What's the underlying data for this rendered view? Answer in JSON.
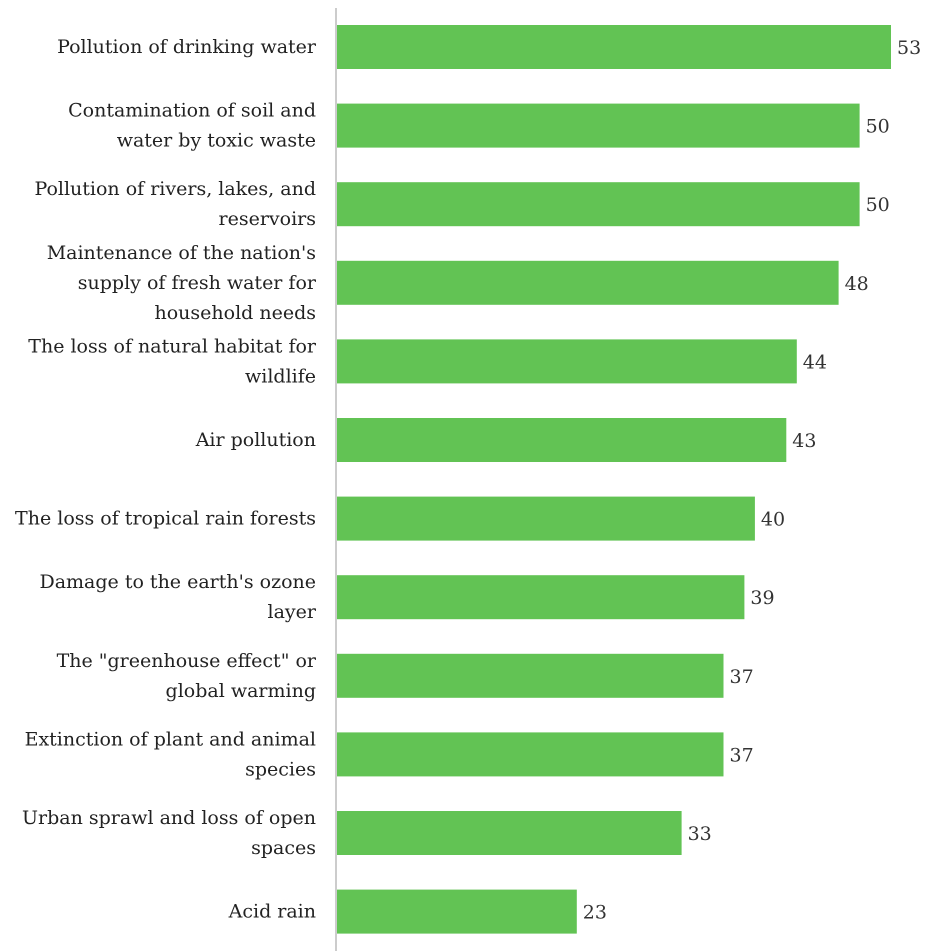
{
  "chart_data": {
    "type": "bar",
    "orientation": "horizontal",
    "categories": [
      "Pollution of drinking water",
      "Contamination of soil and water by toxic waste",
      "Pollution of rivers, lakes, and reservoirs",
      "Maintenance of the nation's supply of fresh water for household needs",
      "The loss of natural habitat for wildlife",
      "Air pollution",
      "The loss of tropical rain forests",
      "Damage to the earth's ozone layer",
      "The \"greenhouse effect\" or global warming",
      "Extinction of plant and animal species",
      "Urban sprawl and loss of open spaces",
      "Acid rain"
    ],
    "category_lines": [
      [
        "Pollution of drinking water"
      ],
      [
        "Contamination of soil and",
        "water by toxic waste"
      ],
      [
        "Pollution of rivers, lakes, and",
        "reservoirs"
      ],
      [
        "Maintenance of the nation's",
        "supply of fresh water for",
        "household needs"
      ],
      [
        "The loss of natural habitat for",
        "wildlife"
      ],
      [
        "Air pollution"
      ],
      [
        "The loss of tropical rain forests"
      ],
      [
        "Damage to the earth's ozone",
        "layer"
      ],
      [
        "The \"greenhouse effect\" or",
        "global warming"
      ],
      [
        "Extinction of plant and animal",
        "species"
      ],
      [
        "Urban sprawl and loss of open",
        "spaces"
      ],
      [
        "Acid rain"
      ]
    ],
    "values": [
      53,
      50,
      50,
      48,
      44,
      43,
      40,
      39,
      37,
      37,
      33,
      23
    ],
    "data_labels": [
      "53",
      "50",
      "50",
      "48",
      "44",
      "43",
      "40",
      "39",
      "37",
      "37",
      "33",
      "23"
    ],
    "title": "",
    "xlabel": "",
    "ylabel": "",
    "xlim": [
      0,
      53
    ],
    "grid": false,
    "legend": "none",
    "bar_color": "#62c354",
    "axis_color": "#cccccc"
  }
}
